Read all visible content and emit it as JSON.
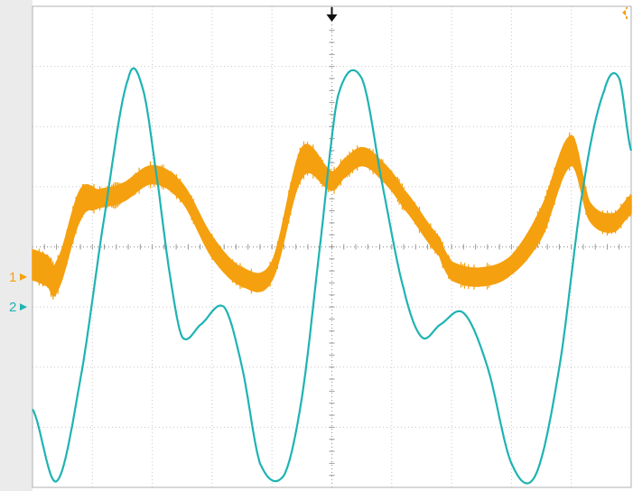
{
  "chart_data": {
    "type": "line",
    "title": "",
    "xlabel": "",
    "ylabel": "",
    "grid": true,
    "grid_divisions": {
      "x": 10,
      "y": 8
    },
    "xlim": [
      0,
      10
    ],
    "ylim": [
      -4,
      4
    ],
    "channel_markers": [
      {
        "label": "1",
        "color": "#f5a00f",
        "offset_div": -0.5
      },
      {
        "label": "2",
        "color": "#1fb3b3",
        "offset_div": -1.0
      }
    ],
    "series": [
      {
        "color": "#f5a00f",
        "x": [
          0,
          0.25,
          0.4,
          0.8,
          1.1,
          1.5,
          2.0,
          2.5,
          3.0,
          3.5,
          4.0,
          4.5,
          5.0,
          5.2,
          5.5,
          5.8,
          6.2,
          6.8,
          7.0,
          7.5,
          8.0,
          8.5,
          9.0,
          9.3,
          9.7,
          10.0
        ],
        "y": [
          -0.3,
          -0.4,
          -0.5,
          0.7,
          0.8,
          0.9,
          1.2,
          0.9,
          0.0,
          -0.5,
          -0.4,
          1.4,
          1.1,
          1.3,
          1.5,
          1.3,
          0.8,
          0.0,
          -0.4,
          -0.5,
          -0.3,
          0.4,
          1.6,
          0.6,
          0.4,
          0.7
        ],
        "band": [
          0.5,
          0.5,
          0.5,
          0.5,
          0.3,
          0.3,
          0.3,
          0.3,
          0.35,
          0.3,
          0.3,
          0.5,
          0.3,
          0.3,
          0.3,
          0.3,
          0.3,
          0.3,
          0.3,
          0.3,
          0.3,
          0.5,
          0.5,
          0.3,
          0.3,
          0.3
        ]
      },
      {
        "color": "#1fb3b3",
        "x": [
          0,
          0.4,
          0.8,
          1.2,
          1.6,
          1.85,
          2.1,
          2.3,
          2.5,
          2.8,
          3.2,
          3.5,
          3.8,
          4.2,
          4.5,
          4.8,
          5.1,
          5.5,
          5.85,
          6.2,
          6.5,
          6.8,
          7.2,
          7.6,
          8.0,
          8.4,
          8.8,
          9.2,
          9.55,
          9.8,
          10.0
        ],
        "y": [
          -2.7,
          -3.9,
          -2.2,
          0.5,
          2.8,
          2.6,
          1.0,
          -0.5,
          -1.5,
          -1.3,
          -1.0,
          -2.0,
          -3.6,
          -3.8,
          -2.5,
          0.0,
          2.5,
          2.8,
          1.0,
          -0.7,
          -1.5,
          -1.3,
          -1.1,
          -2.0,
          -3.6,
          -3.8,
          -2.0,
          1.0,
          2.6,
          2.8,
          1.6
        ]
      }
    ]
  }
}
